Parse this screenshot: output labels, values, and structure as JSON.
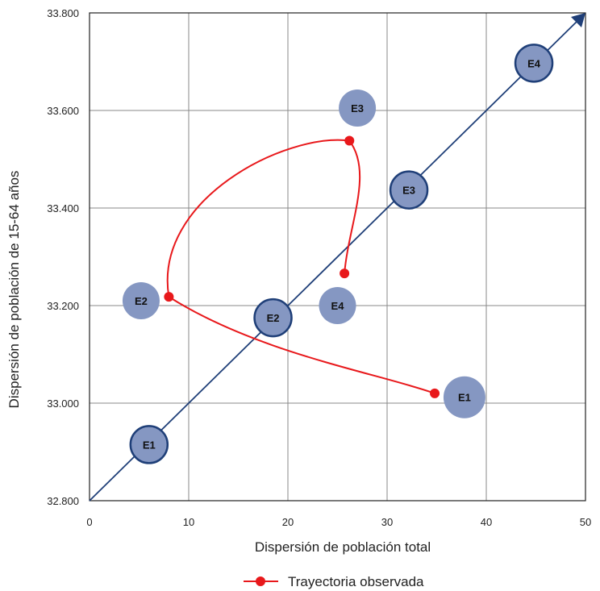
{
  "chart_data": {
    "type": "scatter",
    "title": "",
    "xlabel": "Dispersión de población total",
    "ylabel": "Dispersión de población de 15-64 años",
    "xlim": [
      0,
      50
    ],
    "ylim": [
      32800,
      33800
    ],
    "x_ticks": [
      0,
      10,
      20,
      30,
      40,
      50
    ],
    "x_tick_labels": [
      "0",
      "10",
      "20",
      "30",
      "40",
      "50"
    ],
    "y_ticks": [
      32800,
      33000,
      33200,
      33400,
      33600,
      33800
    ],
    "y_tick_labels": [
      "32.800",
      "33.000",
      "33.200",
      "33.400",
      "33.600",
      "33.800"
    ],
    "grid": true,
    "diagonal_arrow": {
      "from": [
        0,
        32800
      ],
      "to": [
        50,
        33800
      ],
      "color": "#1f3f78"
    },
    "bubbles_on_diagonal": [
      {
        "label": "E1",
        "x": 6,
        "y": 32915
      },
      {
        "label": "E2",
        "x": 18.5,
        "y": 33175
      },
      {
        "label": "E3",
        "x": 32.2,
        "y": 33437
      },
      {
        "label": "E4",
        "x": 44.8,
        "y": 33697
      }
    ],
    "bubbles_off_diagonal": [
      {
        "label": "E1",
        "x": 37.8,
        "y": 33012
      },
      {
        "label": "E2",
        "x": 5.2,
        "y": 33210
      },
      {
        "label": "E3",
        "x": 27,
        "y": 33605
      },
      {
        "label": "E4",
        "x": 25,
        "y": 33200
      }
    ],
    "series": [
      {
        "name": "Trayectoria observada",
        "color": "#e8181b",
        "points": [
          {
            "x": 34.8,
            "y": 33020
          },
          {
            "x": 8,
            "y": 33218
          },
          {
            "x": 26.2,
            "y": 33538
          },
          {
            "x": 25.7,
            "y": 33266
          }
        ]
      }
    ],
    "legend": {
      "position": "bottom-center",
      "entries": [
        "Trayectoria observada"
      ]
    },
    "colors": {
      "bubble_fill": "#8597c2",
      "bubble_stroke_strong": "#1f3f78",
      "grid": "#888888",
      "axis": "#222222"
    }
  }
}
